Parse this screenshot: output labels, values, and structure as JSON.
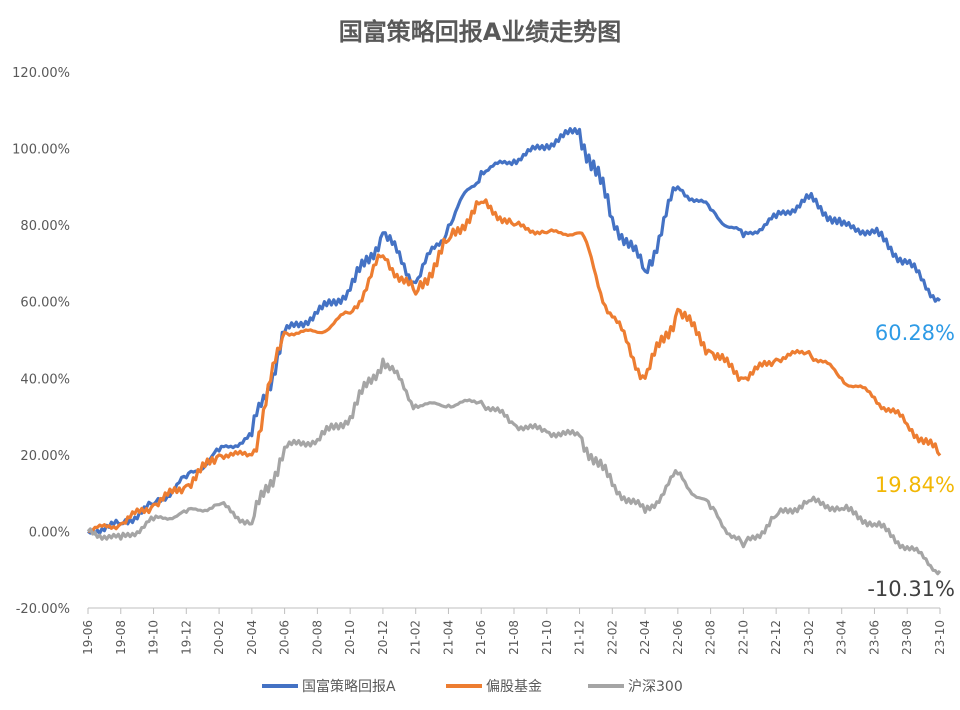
{
  "chart_data": {
    "type": "line",
    "title": "国富策略回报A业绩走势图",
    "yticks": [
      "120.00%",
      "100.00%",
      "80.00%",
      "60.00%",
      "40.00%",
      "20.00%",
      "0.00%",
      "-20.00%"
    ],
    "ylim": [
      -20,
      120
    ],
    "x": [
      "19-06",
      "19-08",
      "19-10",
      "19-12",
      "20-02",
      "20-04",
      "20-06",
      "20-08",
      "20-10",
      "20-12",
      "21-02",
      "21-04",
      "21-06",
      "21-08",
      "21-10",
      "21-12",
      "22-02",
      "22-04",
      "22-06",
      "22-08",
      "22-10",
      "22-12",
      "23-02",
      "23-04",
      "23-06",
      "23-08",
      "23-10"
    ],
    "legend_position": "bottom",
    "series": [
      {
        "name": "国富策略回报A",
        "color": "#4472C4",
        "end_label": "60.28%",
        "end_label_color": "#2E9BE6",
        "values": [
          0,
          2,
          7,
          14,
          21,
          25,
          52,
          57,
          63,
          78,
          65,
          80,
          94,
          97,
          101,
          105,
          82,
          68,
          90,
          84,
          77,
          82,
          87,
          80,
          78,
          70,
          60.28
        ]
      },
      {
        "name": "偏股基金",
        "color": "#ED7D31",
        "end_label": "19.84%",
        "end_label_color": "#F2B705",
        "values": [
          0,
          2,
          7,
          12,
          20,
          20,
          52,
          52,
          57,
          72,
          62,
          76,
          86,
          80,
          78,
          78,
          56,
          40,
          58,
          47,
          40,
          45,
          47,
          40,
          35,
          28,
          19.84
        ]
      },
      {
        "name": "沪深300",
        "color": "#A5A5A5",
        "end_label": "-10.31%",
        "end_label_color": "#404040",
        "values": [
          0,
          -2,
          3,
          5,
          7,
          2,
          22,
          24,
          30,
          45,
          33,
          33,
          34,
          28,
          26,
          25,
          12,
          5,
          15,
          6,
          -4,
          4,
          8,
          6,
          2,
          -4,
          -10.31
        ]
      }
    ]
  }
}
